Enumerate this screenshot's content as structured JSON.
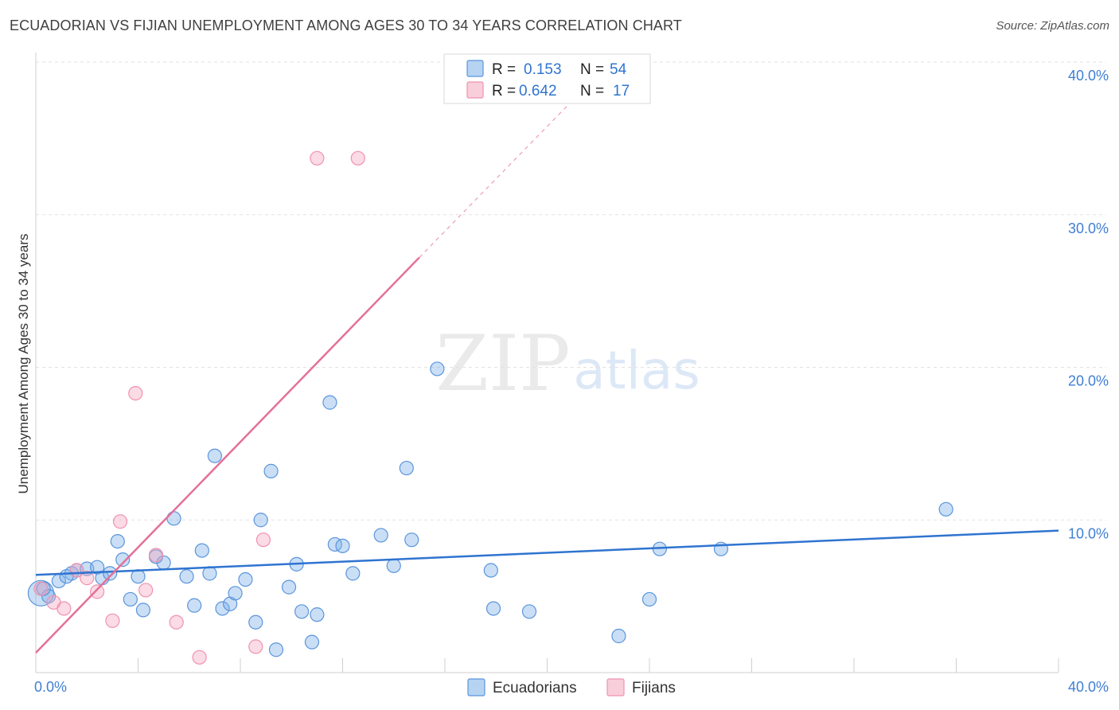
{
  "header": {
    "title": "ECUADORIAN VS FIJIAN UNEMPLOYMENT AMONG AGES 30 TO 34 YEARS CORRELATION CHART",
    "source": "Source: ZipAtlas.com"
  },
  "watermark": {
    "zip": "ZIP",
    "atlas": "atlas"
  },
  "colors": {
    "ecuadorian": "#7aaee8",
    "ecuadorian_line": "#2f74d0",
    "fijian": "#f4a6bd",
    "fijian_line": "#e4709a",
    "tick_text": "#3f7fd4",
    "grid": "#e2e2e2"
  },
  "chart_data": {
    "type": "scatter",
    "title": "ECUADORIAN VS FIJIAN UNEMPLOYMENT AMONG AGES 30 TO 34 YEARS CORRELATION CHART",
    "xlabel": "",
    "ylabel": "Unemployment Among Ages 30 to 34 years",
    "xlim": [
      0,
      40
    ],
    "ylim": [
      0,
      40
    ],
    "x_tick_labels": [
      "0.0%",
      "40.0%"
    ],
    "y_ticks": [
      10,
      20,
      30,
      40
    ],
    "y_tick_labels": [
      "10.0%",
      "20.0%",
      "30.0%",
      "40.0%"
    ],
    "legend": {
      "position": "top-center",
      "rows": [
        {
          "r_label": "R =",
          "r_value": "0.153",
          "n_label": "N =",
          "n_value": "54"
        },
        {
          "r_label": "R =",
          "r_value": "0.642",
          "n_label": "N =",
          "n_value": "17"
        }
      ]
    },
    "bottom_legend": [
      "Ecuadorians",
      "Fijians"
    ],
    "series": [
      {
        "name": "Ecuadorians",
        "r": 0.153,
        "n": 54,
        "trend": {
          "x": [
            0,
            40
          ],
          "y": [
            6.4,
            9.3
          ]
        },
        "points": [
          {
            "x": 0.2,
            "y": 5.2,
            "big": true
          },
          {
            "x": 0.5,
            "y": 5.0
          },
          {
            "x": 0.9,
            "y": 6.0
          },
          {
            "x": 1.4,
            "y": 6.5
          },
          {
            "x": 1.6,
            "y": 6.7
          },
          {
            "x": 2.0,
            "y": 6.8
          },
          {
            "x": 2.4,
            "y": 6.9
          },
          {
            "x": 2.6,
            "y": 6.2
          },
          {
            "x": 2.9,
            "y": 6.5
          },
          {
            "x": 3.2,
            "y": 8.6
          },
          {
            "x": 3.4,
            "y": 7.4
          },
          {
            "x": 3.7,
            "y": 4.8
          },
          {
            "x": 4.0,
            "y": 6.3
          },
          {
            "x": 4.2,
            "y": 4.1
          },
          {
            "x": 4.7,
            "y": 7.6
          },
          {
            "x": 5.0,
            "y": 7.2
          },
          {
            "x": 5.4,
            "y": 10.1
          },
          {
            "x": 5.9,
            "y": 6.3
          },
          {
            "x": 6.2,
            "y": 4.4
          },
          {
            "x": 6.5,
            "y": 8.0
          },
          {
            "x": 6.8,
            "y": 6.5
          },
          {
            "x": 7.0,
            "y": 14.2
          },
          {
            "x": 7.3,
            "y": 4.2
          },
          {
            "x": 7.6,
            "y": 4.5
          },
          {
            "x": 7.8,
            "y": 5.2
          },
          {
            "x": 8.2,
            "y": 6.1
          },
          {
            "x": 8.6,
            "y": 3.3
          },
          {
            "x": 8.8,
            "y": 10.0
          },
          {
            "x": 9.2,
            "y": 13.2
          },
          {
            "x": 9.4,
            "y": 1.5
          },
          {
            "x": 9.9,
            "y": 5.6
          },
          {
            "x": 10.2,
            "y": 7.1
          },
          {
            "x": 10.4,
            "y": 4.0
          },
          {
            "x": 10.8,
            "y": 2.0
          },
          {
            "x": 11.0,
            "y": 3.8
          },
          {
            "x": 11.5,
            "y": 17.7
          },
          {
            "x": 11.7,
            "y": 8.4
          },
          {
            "x": 12.0,
            "y": 8.3
          },
          {
            "x": 12.4,
            "y": 6.5
          },
          {
            "x": 13.5,
            "y": 9.0
          },
          {
            "x": 14.0,
            "y": 7.0
          },
          {
            "x": 14.5,
            "y": 13.4
          },
          {
            "x": 14.7,
            "y": 8.7
          },
          {
            "x": 15.7,
            "y": 19.9
          },
          {
            "x": 17.8,
            "y": 6.7
          },
          {
            "x": 17.9,
            "y": 4.2
          },
          {
            "x": 19.3,
            "y": 4.0
          },
          {
            "x": 22.8,
            "y": 2.4
          },
          {
            "x": 24.0,
            "y": 4.8
          },
          {
            "x": 24.4,
            "y": 8.1
          },
          {
            "x": 26.8,
            "y": 8.1
          },
          {
            "x": 35.6,
            "y": 10.7
          },
          {
            "x": 0.3,
            "y": 5.5
          },
          {
            "x": 1.2,
            "y": 6.3
          }
        ]
      },
      {
        "name": "Fijians",
        "r": 0.642,
        "n": 17,
        "trend": {
          "x": [
            0,
            15
          ],
          "y": [
            1.3,
            27.2
          ],
          "dash_to": {
            "x": 21,
            "y": 37.5
          }
        },
        "points": [
          {
            "x": 0.2,
            "y": 5.5
          },
          {
            "x": 0.7,
            "y": 4.6
          },
          {
            "x": 1.1,
            "y": 4.2
          },
          {
            "x": 1.6,
            "y": 6.7
          },
          {
            "x": 2.0,
            "y": 6.2
          },
          {
            "x": 2.4,
            "y": 5.3
          },
          {
            "x": 3.0,
            "y": 3.4
          },
          {
            "x": 3.3,
            "y": 9.9
          },
          {
            "x": 3.9,
            "y": 18.3
          },
          {
            "x": 4.3,
            "y": 5.4
          },
          {
            "x": 4.7,
            "y": 7.7
          },
          {
            "x": 5.5,
            "y": 3.3
          },
          {
            "x": 6.4,
            "y": 1.0
          },
          {
            "x": 8.6,
            "y": 1.7
          },
          {
            "x": 8.9,
            "y": 8.7
          },
          {
            "x": 11.0,
            "y": 33.7
          },
          {
            "x": 12.6,
            "y": 33.7
          }
        ]
      }
    ]
  }
}
